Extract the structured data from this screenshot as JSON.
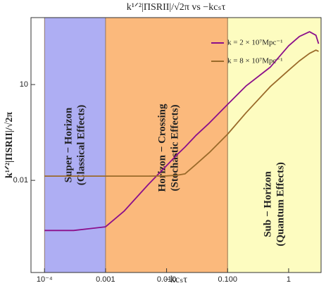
{
  "chart_data": {
    "type": "line",
    "title": "k¹ᐟ²|ΠSRII|/√2π vs −kcₛτ",
    "x_label": "−kcₛτ",
    "y_label": "k¹ᐟ²|ΠSRII|/√2π",
    "xscale": "log",
    "yscale": "log",
    "xlim": [
      6e-05,
      3.4
    ],
    "ylim": [
      1.3e-05,
      1250
    ],
    "xticks": [
      {
        "value": 0.0001,
        "label": "10⁻⁴"
      },
      0.001,
      {
        "value": 0.01,
        "label": "0.010"
      },
      {
        "value": 0.1,
        "label": "0.100"
      },
      1
    ],
    "yticks": [
      0.01,
      10
    ],
    "legend": "upper right",
    "regions": [
      {
        "name": "Super − Horizon",
        "subtitle": "(Classical Effects)",
        "from": 0.0001,
        "to": 0.001,
        "color": "#aeaef3"
      },
      {
        "name": "Horizon − Crossing",
        "subtitle": "(Stochastic Effects)",
        "from": 0.001,
        "to": 0.1,
        "color": "#fbb97c"
      },
      {
        "name": "Sub − Horizon",
        "subtitle": "(Quantum Effects)",
        "from": 0.1,
        "to": 3.4,
        "color": "#fdfcc0"
      }
    ],
    "x": [
      0.0001,
      0.0003,
      0.001,
      0.002,
      0.005,
      0.01,
      0.015,
      0.02,
      0.03,
      0.05,
      0.1,
      0.2,
      0.5,
      1,
      1.5,
      2.2,
      2.8,
      3.1
    ],
    "series": [
      {
        "name": "k = 2 × 10⁷Mpc⁻¹",
        "color": "#8b0f8b",
        "values": [
          0.00027,
          0.00027,
          0.00035,
          0.00107,
          0.0074,
          0.029,
          0.065,
          0.11,
          0.25,
          0.62,
          2.4,
          9,
          35,
          163,
          320,
          450,
          350,
          190
        ]
      },
      {
        "name": "k = 8 × 10⁷Mpc⁻¹",
        "color": "#9a6a2a",
        "values": [
          0.0136,
          0.0136,
          0.0136,
          0.0136,
          0.0136,
          0.0138,
          0.0145,
          0.016,
          0.031,
          0.074,
          0.28,
          1.3,
          8.6,
          28,
          55,
          95,
          120,
          110
        ]
      }
    ]
  }
}
